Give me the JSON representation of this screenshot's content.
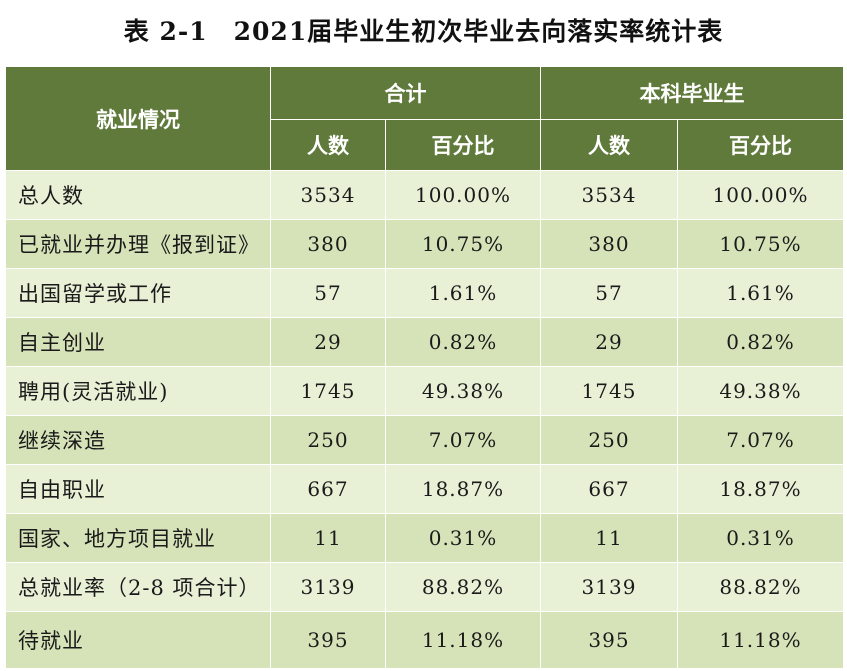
{
  "title": {
    "number": "表 2-1",
    "text": "2021届毕业生初次毕业去向落实率统计表"
  },
  "header": {
    "row_label": "就业情况",
    "group_total": "合计",
    "group_undergrad": "本科毕业生",
    "col_count": "人数",
    "col_percent": "百分比"
  },
  "rows": [
    {
      "label": "总人数",
      "total_count": "3534",
      "total_pct": "100.00%",
      "ug_count": "3534",
      "ug_pct": "100.00%"
    },
    {
      "label": "已就业并办理《报到证》",
      "total_count": "380",
      "total_pct": "10.75%",
      "ug_count": "380",
      "ug_pct": "10.75%"
    },
    {
      "label": "出国留学或工作",
      "total_count": "57",
      "total_pct": "1.61%",
      "ug_count": "57",
      "ug_pct": "1.61%"
    },
    {
      "label": "自主创业",
      "total_count": "29",
      "total_pct": "0.82%",
      "ug_count": "29",
      "ug_pct": "0.82%"
    },
    {
      "label": "聘用(灵活就业)",
      "total_count": "1745",
      "total_pct": "49.38%",
      "ug_count": "1745",
      "ug_pct": "49.38%"
    },
    {
      "label": "继续深造",
      "total_count": "250",
      "total_pct": "7.07%",
      "ug_count": "250",
      "ug_pct": "7.07%"
    },
    {
      "label": "自由职业",
      "total_count": "667",
      "total_pct": "18.87%",
      "ug_count": "667",
      "ug_pct": "18.87%"
    },
    {
      "label": "国家、地方项目就业",
      "total_count": "11",
      "total_pct": "0.31%",
      "ug_count": "11",
      "ug_pct": "0.31%"
    },
    {
      "label": "总就业率（2-8 项合计）",
      "total_count": "3139",
      "total_pct": "88.82%",
      "ug_count": "3139",
      "ug_pct": "88.82%"
    },
    {
      "label": "待就业",
      "total_count": "395",
      "total_pct": "11.18%",
      "ug_count": "395",
      "ug_pct": "11.18%"
    }
  ],
  "colors": {
    "header_bg": "#5f7a3a",
    "row_light": "#e8f0d6",
    "row_dark": "#d6e3b8"
  }
}
